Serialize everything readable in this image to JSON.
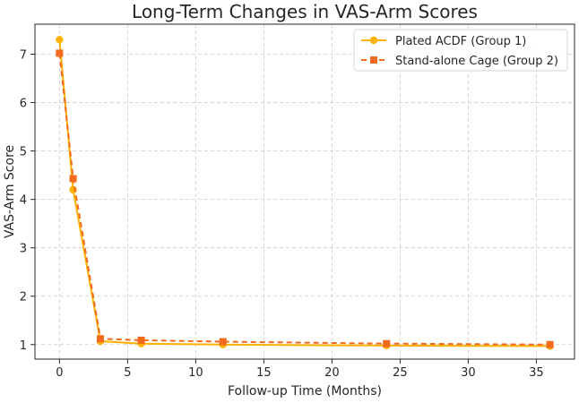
{
  "chart_data": {
    "type": "line",
    "title": "Long-Term Changes in VAS-Arm Scores",
    "xlabel": "Follow-up Time (Months)",
    "ylabel": "VAS-Arm Score",
    "xlim": [
      -1.8,
      37.8
    ],
    "ylim": [
      0.7,
      7.62
    ],
    "xticks": [
      0,
      5,
      10,
      15,
      20,
      25,
      30,
      35
    ],
    "yticks": [
      1,
      2,
      3,
      4,
      5,
      6,
      7
    ],
    "grid": true,
    "legend_position": "top-right",
    "x": [
      0,
      1,
      3,
      6,
      12,
      24,
      36
    ],
    "series": [
      {
        "name": "Plated ACDF (Group 1)",
        "values": [
          7.3,
          4.2,
          1.07,
          1.02,
          1.0,
          0.98,
          0.97
        ],
        "color": "#FFB000",
        "marker": "circle",
        "line_style": "solid"
      },
      {
        "name": "Stand-alone Cage (Group 2)",
        "values": [
          7.02,
          4.43,
          1.12,
          1.09,
          1.06,
          1.02,
          1.0
        ],
        "color": "#F26B1D",
        "marker": "square",
        "line_style": "dashed"
      }
    ]
  }
}
